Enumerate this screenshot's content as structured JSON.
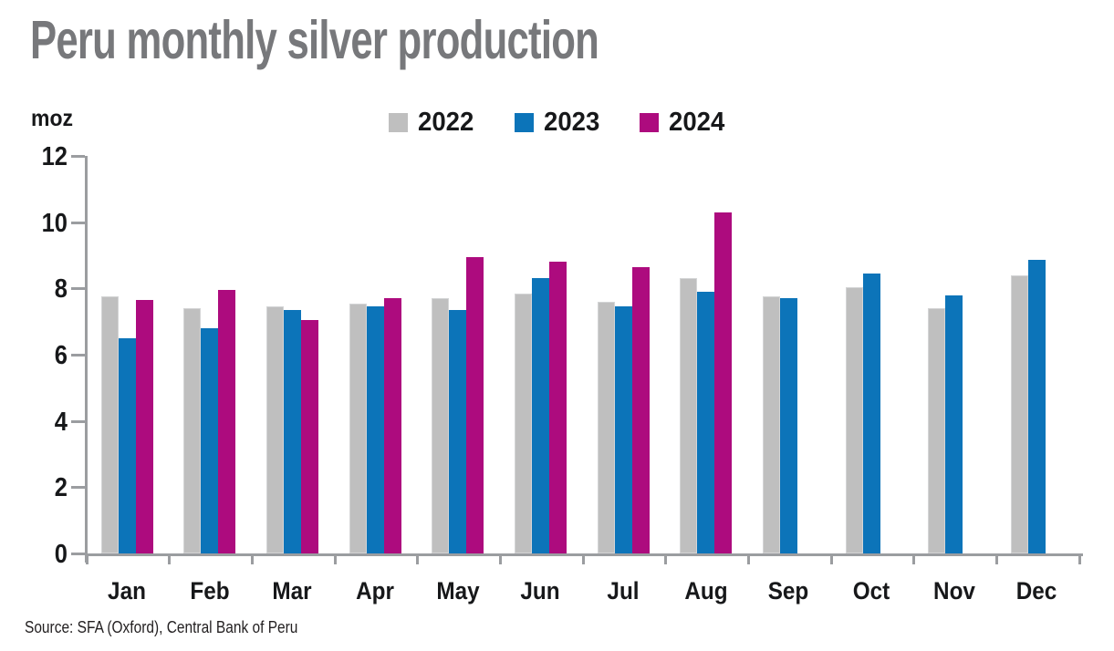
{
  "title": "Peru monthly silver production",
  "y_axis_unit": "moz",
  "source_note": "Source: SFA (Oxford), Central Bank of Peru",
  "colors": {
    "series_2022": "#bfbfbf",
    "series_2023": "#0c74b9",
    "series_2024": "#ad0b7e",
    "title_gray": "#77787b",
    "axis_gray": "#9b9da0",
    "text_black": "#17181a"
  },
  "chart_data": {
    "type": "bar",
    "title": "Peru monthly silver production",
    "xlabel": "",
    "ylabel": "moz",
    "ylim": [
      0,
      12
    ],
    "yticks": [
      0,
      2,
      4,
      6,
      8,
      10,
      12
    ],
    "grid": false,
    "legend_position": "top-center",
    "categories": [
      "Jan",
      "Feb",
      "Mar",
      "Apr",
      "May",
      "Jun",
      "Jul",
      "Aug",
      "Sep",
      "Oct",
      "Nov",
      "Dec"
    ],
    "series": [
      {
        "name": "2022",
        "color": "#bfbfbf",
        "values": [
          7.75,
          7.4,
          7.45,
          7.55,
          7.7,
          7.85,
          7.6,
          8.3,
          7.75,
          8.05,
          7.4,
          8.4
        ]
      },
      {
        "name": "2023",
        "color": "#0c74b9",
        "values": [
          6.5,
          6.8,
          7.35,
          7.45,
          7.35,
          8.3,
          7.45,
          7.9,
          7.7,
          8.45,
          7.8,
          8.85
        ]
      },
      {
        "name": "2024",
        "color": "#ad0b7e",
        "values": [
          7.65,
          7.95,
          7.05,
          7.7,
          8.95,
          8.8,
          8.65,
          10.3,
          null,
          null,
          null,
          null
        ]
      }
    ]
  }
}
